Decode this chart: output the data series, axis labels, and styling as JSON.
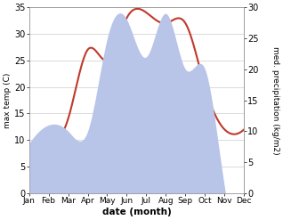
{
  "months": [
    "Jan",
    "Feb",
    "Mar",
    "Apr",
    "May",
    "Jun",
    "Jul",
    "Aug",
    "Sep",
    "Oct",
    "Nov",
    "Dec"
  ],
  "temperature": [
    4,
    9,
    14,
    27,
    25,
    33,
    34,
    32,
    32,
    20,
    12,
    12
  ],
  "precipitation": [
    8,
    11,
    10,
    10,
    25,
    28,
    22,
    29,
    20,
    20,
    1,
    0
  ],
  "temp_color": "#c0392b",
  "precip_color": "#b8c4e8",
  "temp_ylim": [
    0,
    35
  ],
  "precip_ylim": [
    0,
    30
  ],
  "temp_yticks": [
    0,
    5,
    10,
    15,
    20,
    25,
    30,
    35
  ],
  "precip_yticks": [
    0,
    5,
    10,
    15,
    20,
    25,
    30
  ],
  "xlabel": "date (month)",
  "ylabel_left": "max temp (C)",
  "ylabel_right": "med. precipitation (kg/m2)",
  "background_color": "#ffffff",
  "figsize": [
    3.18,
    2.47
  ],
  "dpi": 100
}
